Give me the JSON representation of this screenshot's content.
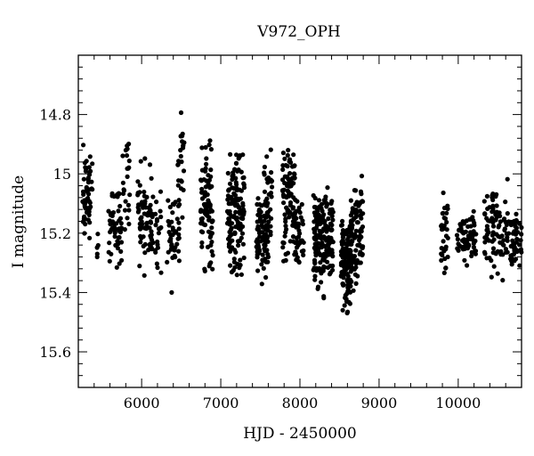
{
  "chart_data": {
    "type": "scatter",
    "title": "V972_OPH",
    "xlabel": "HJD - 2450000",
    "ylabel": "I magnitude",
    "xlim": [
      5200,
      10800
    ],
    "ylim": [
      15.72,
      14.6
    ],
    "y_inverted": true,
    "grid": false,
    "marker_color": "#000000",
    "x_ticks": [
      6000,
      7000,
      8000,
      9000,
      10000
    ],
    "y_ticks": [
      14.8,
      15,
      15.2,
      15.4,
      15.6
    ],
    "x_tick_labels": [
      "6000",
      "7000",
      "8000",
      "9000",
      "10000"
    ],
    "y_tick_labels": [
      "14.8",
      "15",
      "15.2",
      "15.4",
      "15.6"
    ],
    "clusters": [
      {
        "x": [
          5250,
          5380
        ],
        "y_center": 15.06,
        "y_spread": 0.07,
        "count": 60
      },
      {
        "x": [
          5430,
          5460
        ],
        "y_center": 15.22,
        "y_spread": 0.03,
        "count": 5
      },
      {
        "x": [
          5580,
          5750
        ],
        "y_center": 15.19,
        "y_spread": 0.06,
        "count": 55
      },
      {
        "x": [
          5760,
          5860
        ],
        "y_center": 15.04,
        "y_spread": 0.08,
        "count": 22
      },
      {
        "x": [
          5950,
          6120
        ],
        "y_center": 15.15,
        "y_spread": 0.08,
        "count": 70
      },
      {
        "x": [
          6120,
          6250
        ],
        "y_center": 15.18,
        "y_spread": 0.08,
        "count": 30
      },
      {
        "x": [
          6320,
          6480
        ],
        "y_center": 15.2,
        "y_spread": 0.06,
        "count": 40
      },
      {
        "x": [
          6450,
          6540
        ],
        "y_center": 15.0,
        "y_spread": 0.08,
        "count": 25
      },
      {
        "x": [
          6740,
          6900
        ],
        "y_center": 15.13,
        "y_spread": 0.1,
        "count": 85
      },
      {
        "x": [
          7080,
          7300
        ],
        "y_center": 15.13,
        "y_spread": 0.09,
        "count": 140
      },
      {
        "x": [
          7450,
          7600
        ],
        "y_center": 15.19,
        "y_spread": 0.07,
        "count": 80
      },
      {
        "x": [
          7540,
          7650
        ],
        "y_center": 15.08,
        "y_spread": 0.1,
        "count": 30
      },
      {
        "x": [
          7780,
          7940
        ],
        "y_center": 15.07,
        "y_spread": 0.1,
        "count": 90
      },
      {
        "x": [
          7930,
          8050
        ],
        "y_center": 15.2,
        "y_spread": 0.06,
        "count": 45
      },
      {
        "x": [
          8170,
          8420
        ],
        "y_center": 15.21,
        "y_spread": 0.08,
        "count": 170
      },
      {
        "x": [
          8520,
          8650
        ],
        "y_center": 15.31,
        "y_spread": 0.07,
        "count": 130
      },
      {
        "x": [
          8640,
          8800
        ],
        "y_center": 15.2,
        "y_spread": 0.09,
        "count": 90
      },
      {
        "x": [
          9780,
          9880
        ],
        "y_center": 15.2,
        "y_spread": 0.07,
        "count": 35
      },
      {
        "x": [
          9980,
          10230
        ],
        "y_center": 15.22,
        "y_spread": 0.04,
        "count": 70
      },
      {
        "x": [
          10330,
          10520
        ],
        "y_center": 15.18,
        "y_spread": 0.07,
        "count": 60
      },
      {
        "x": [
          10520,
          10640
        ],
        "y_center": 15.2,
        "y_spread": 0.07,
        "count": 30
      },
      {
        "x": [
          10660,
          10800
        ],
        "y_center": 15.23,
        "y_spread": 0.05,
        "count": 45
      }
    ],
    "extra_points": [
      {
        "x": 6380,
        "y": 15.4
      },
      {
        "x": 8590,
        "y": 15.43
      },
      {
        "x": 6490,
        "y": 14.92
      },
      {
        "x": 7850,
        "y": 14.92
      },
      {
        "x": 5800,
        "y": 14.92
      }
    ]
  }
}
